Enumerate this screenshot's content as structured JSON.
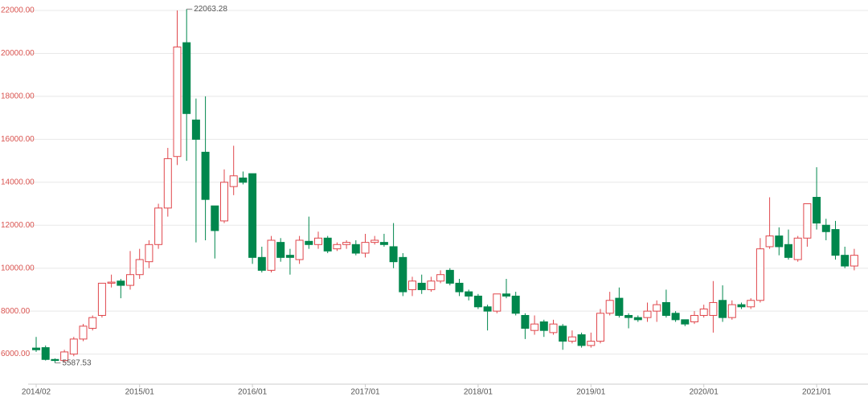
{
  "chart_data": {
    "type": "candlestick",
    "categories": [
      "2014/02",
      null,
      null,
      null,
      null,
      null,
      null,
      null,
      null,
      null,
      null,
      "2015/01",
      null,
      null,
      null,
      null,
      null,
      null,
      null,
      null,
      null,
      null,
      null,
      "2016/01",
      null,
      null,
      null,
      null,
      null,
      null,
      null,
      null,
      null,
      null,
      null,
      "2017/01",
      null,
      null,
      null,
      null,
      null,
      null,
      null,
      null,
      null,
      null,
      null,
      "2018/01",
      null,
      null,
      null,
      null,
      null,
      null,
      null,
      null,
      null,
      null,
      null,
      "2019/01",
      null,
      null,
      null,
      null,
      null,
      null,
      null,
      null,
      null,
      null,
      null,
      "2020/01",
      null,
      null,
      null,
      null,
      null,
      null,
      null,
      null,
      null,
      null,
      null,
      "2021/01",
      null,
      null,
      null,
      null
    ],
    "open": [
      6280,
      6300,
      5750,
      5700,
      6000,
      6700,
      7200,
      7800,
      9300,
      9400,
      9200,
      9700,
      10300,
      11100,
      12800,
      15200,
      20500,
      16900,
      15400,
      12900,
      12200,
      13800,
      14200,
      14400,
      10500,
      9900,
      11200,
      10600,
      10400,
      11250,
      11100,
      11400,
      10900,
      11100,
      11100,
      10700,
      11200,
      11200,
      11000,
      10500,
      9000,
      9300,
      9000,
      9400,
      9900,
      9300,
      8900,
      8700,
      8200,
      8000,
      8800,
      8700,
      7800,
      7100,
      7500,
      7000,
      7300,
      6600,
      6900,
      6400,
      6600,
      7900,
      8600,
      7800,
      7700,
      7700,
      8000,
      8400,
      7900,
      7600,
      7500,
      7800,
      7800,
      8500,
      7700,
      8300,
      8200,
      8500,
      11000,
      11500,
      11100,
      10400,
      11400,
      13300,
      12000,
      11800,
      10600,
      10100
    ],
    "high": [
      6800,
      6400,
      5800,
      6200,
      6800,
      7400,
      7800,
      9300,
      9700,
      9500,
      10800,
      10900,
      11300,
      13000,
      15600,
      22000,
      22063.28,
      17900,
      18000,
      12900,
      14600,
      15700,
      14500,
      14400,
      11000,
      11500,
      11400,
      10900,
      11500,
      12400,
      11700,
      11500,
      11200,
      11300,
      11300,
      11600,
      11500,
      11600,
      12100,
      10700,
      9600,
      9700,
      9600,
      9900,
      10000,
      9500,
      9000,
      8800,
      8300,
      8800,
      9500,
      8900,
      7900,
      7800,
      7600,
      7600,
      7400,
      7100,
      7000,
      7000,
      8100,
      8900,
      9100,
      7900,
      7800,
      8400,
      8500,
      9000,
      8000,
      7600,
      8000,
      8300,
      9400,
      9200,
      8500,
      8400,
      8600,
      11400,
      13300,
      11900,
      11800,
      11500,
      13000,
      14700,
      12300,
      12200,
      11000,
      10900
    ],
    "low": [
      6100,
      5700,
      5587.53,
      5600,
      5900,
      6600,
      7100,
      7700,
      9100,
      8600,
      9000,
      9500,
      10000,
      10900,
      12400,
      14800,
      15000,
      11200,
      11300,
      10450,
      12100,
      13400,
      13900,
      10200,
      9800,
      9800,
      10300,
      9700,
      10200,
      10900,
      10900,
      10700,
      10800,
      10900,
      10600,
      10500,
      11100,
      11000,
      10000,
      8700,
      8700,
      8800,
      8900,
      9300,
      9200,
      8700,
      8500,
      8100,
      7100,
      7900,
      8600,
      7800,
      6700,
      6900,
      6800,
      6900,
      6200,
      6500,
      6300,
      6300,
      6500,
      7800,
      7700,
      7200,
      7500,
      7500,
      7500,
      7700,
      7500,
      7300,
      7400,
      7700,
      7000,
      7500,
      7600,
      8100,
      8100,
      8400,
      10900,
      10600,
      10400,
      10300,
      11000,
      11800,
      11300,
      10400,
      10000,
      9900
    ],
    "close": [
      6200,
      5750,
      5700,
      6100,
      6700,
      7300,
      7700,
      9300,
      9350,
      9200,
      9700,
      10400,
      11100,
      12800,
      15100,
      20300,
      17200,
      16000,
      13200,
      11750,
      14000,
      14300,
      14000,
      10500,
      9900,
      11300,
      10500,
      10500,
      11300,
      11100,
      11400,
      10800,
      11100,
      11200,
      10700,
      11200,
      11300,
      11100,
      10300,
      8900,
      9400,
      9000,
      9400,
      9700,
      9300,
      8900,
      8700,
      8200,
      8000,
      8800,
      8700,
      7900,
      7200,
      7400,
      7100,
      7400,
      6600,
      6800,
      6400,
      6600,
      7900,
      8500,
      7800,
      7700,
      7600,
      8000,
      8300,
      7800,
      7600,
      7400,
      7800,
      8100,
      8400,
      7700,
      8300,
      8200,
      8500,
      10900,
      11500,
      11000,
      10500,
      11400,
      13000,
      12100,
      11700,
      10600,
      10100,
      10600
    ],
    "up_color": "#e0474c",
    "down_color": "#00874d",
    "ylim": [
      4600,
      22300
    ],
    "yticks": [
      {
        "value": 6000,
        "label": "6000.00"
      },
      {
        "value": 8000,
        "label": "8000.00"
      },
      {
        "value": 10000,
        "label": "10000.00"
      },
      {
        "value": 12000,
        "label": "12000.00"
      },
      {
        "value": 14000,
        "label": "14000.00"
      },
      {
        "value": 16000,
        "label": "16000.00"
      },
      {
        "value": 18000,
        "label": "18000.00"
      },
      {
        "value": 20000,
        "label": "20000.00"
      },
      {
        "value": 22000,
        "label": "22000.00"
      }
    ],
    "grid": true
  }
}
